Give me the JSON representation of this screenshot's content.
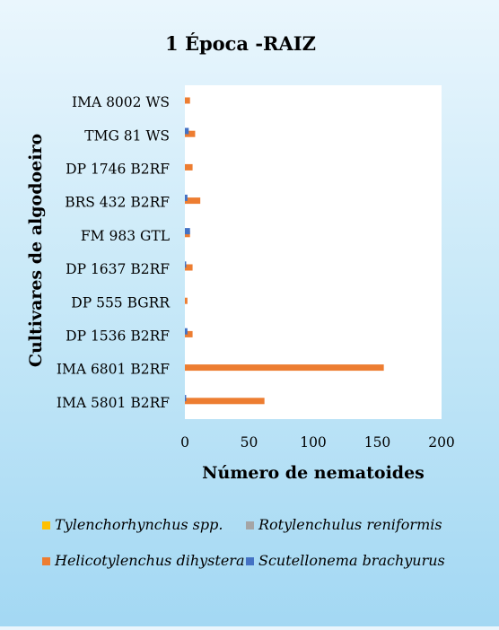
{
  "chart_data": {
    "type": "bar",
    "orientation": "horizontal",
    "title": "1 Época -RAIZ",
    "xlabel": "Número de nematoides",
    "ylabel": "Cultivares de algodoeiro",
    "xlim": [
      0,
      200
    ],
    "xticks": [
      "0",
      "50",
      "100",
      "150",
      "200"
    ],
    "grid": false,
    "legend_position": "bottom",
    "categories": [
      "IMA 8002 WS",
      "TMG 81 WS",
      "DP 1746 B2RF",
      "BRS 432 B2RF",
      "FM 983 GTL",
      "DP 1637 B2RF",
      "DP 555 BGRR",
      "DP 1536 B2RF",
      "IMA 6801 B2RF",
      "IMA 5801 B2RF"
    ],
    "series": [
      {
        "name": "Tylenchorhynchus spp.",
        "color": "#FFC000",
        "values": [
          0,
          0,
          0,
          0,
          0,
          0,
          0,
          0,
          0,
          0
        ]
      },
      {
        "name": "Rotylenchulus reniformis",
        "color": "#A5A5A5",
        "values": [
          0,
          0,
          0,
          0,
          0,
          0,
          0,
          0,
          0,
          0
        ]
      },
      {
        "name": "Helicotylenchus dihystera",
        "color": "#ED7D31",
        "values": [
          4,
          8,
          6,
          12,
          4,
          6,
          2,
          6,
          155,
          62
        ]
      },
      {
        "name": "Scutellonema brachyurus",
        "color": "#4472C4",
        "values": [
          0,
          3,
          0,
          2,
          4,
          1,
          0,
          2,
          0,
          1
        ]
      }
    ]
  }
}
